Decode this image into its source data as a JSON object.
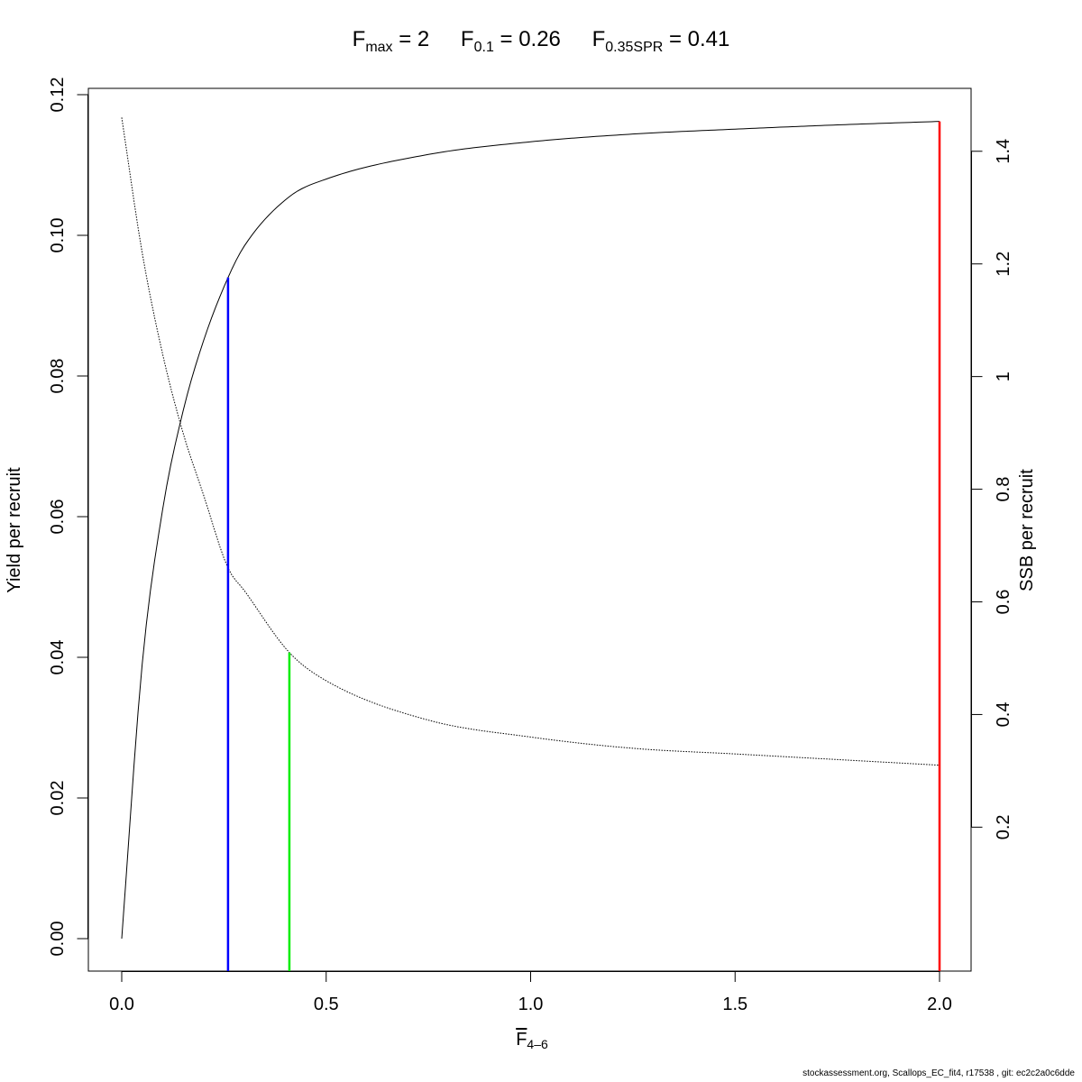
{
  "chart_data": {
    "type": "line",
    "title_parts": [
      {
        "sym": "F",
        "sub": "max",
        "eq": " = 2"
      },
      {
        "sym": "F",
        "sub": "0.1",
        "eq": " = 0.26"
      },
      {
        "sym": "F",
        "sub": "0.35SPR",
        "eq": " = 0.41"
      }
    ],
    "xlabel": {
      "sym": "F",
      "sub": "4–6"
    },
    "ylabel_left": "Yield per recruit",
    "ylabel_right": "SSB per recruit",
    "xlim": [
      0,
      2
    ],
    "ylim_left": [
      0,
      0.12
    ],
    "ylim_right": [
      0,
      1.5
    ],
    "x_ticks": [
      "0.0",
      "0.5",
      "1.0",
      "1.5",
      "2.0"
    ],
    "y_left_ticks": [
      "0.00",
      "0.02",
      "0.04",
      "0.06",
      "0.08",
      "0.10",
      "0.12"
    ],
    "y_right_ticks": [
      "0.2",
      "0.4",
      "0.6",
      "0.8",
      "1",
      "1.2",
      "1.4"
    ],
    "grid": false,
    "series": [
      {
        "axis": "left",
        "style": "solid",
        "color": "#000000",
        "x": [
          0,
          0.05,
          0.1,
          0.15,
          0.2,
          0.26,
          0.3,
          0.41,
          0.5,
          0.75,
          1.0,
          1.25,
          1.5,
          1.75,
          2.0
        ],
        "y": [
          0,
          0.039,
          0.061,
          0.075,
          0.085,
          0.094,
          0.0985,
          0.1055,
          0.108,
          0.1115,
          0.1133,
          0.1144,
          0.1151,
          0.1157,
          0.1162
        ]
      },
      {
        "axis": "right",
        "style": "dotted",
        "color": "#000000",
        "x": [
          0,
          0.05,
          0.1,
          0.15,
          0.2,
          0.26,
          0.3,
          0.41,
          0.5,
          0.75,
          1.0,
          1.25,
          1.5,
          1.75,
          2.0
        ],
        "y": [
          1.46,
          1.22,
          1.04,
          0.9,
          0.79,
          0.66,
          0.62,
          0.51,
          0.46,
          0.39,
          0.36,
          0.34,
          0.33,
          0.32,
          0.31
        ]
      }
    ],
    "reference_lines": [
      {
        "x": 0.26,
        "axis": "left",
        "y_top": 0.094,
        "color": "#0000ff"
      },
      {
        "x": 0.41,
        "axis": "right",
        "y_top": 0.51,
        "color": "#00ee00"
      },
      {
        "x": 2.0,
        "axis": "left",
        "y_top": 0.1162,
        "color": "#ff0000"
      }
    ]
  },
  "footer": "stockassessment.org, Scallops_EC_fit4, r17538 , git: ec2c2a0c6dde"
}
